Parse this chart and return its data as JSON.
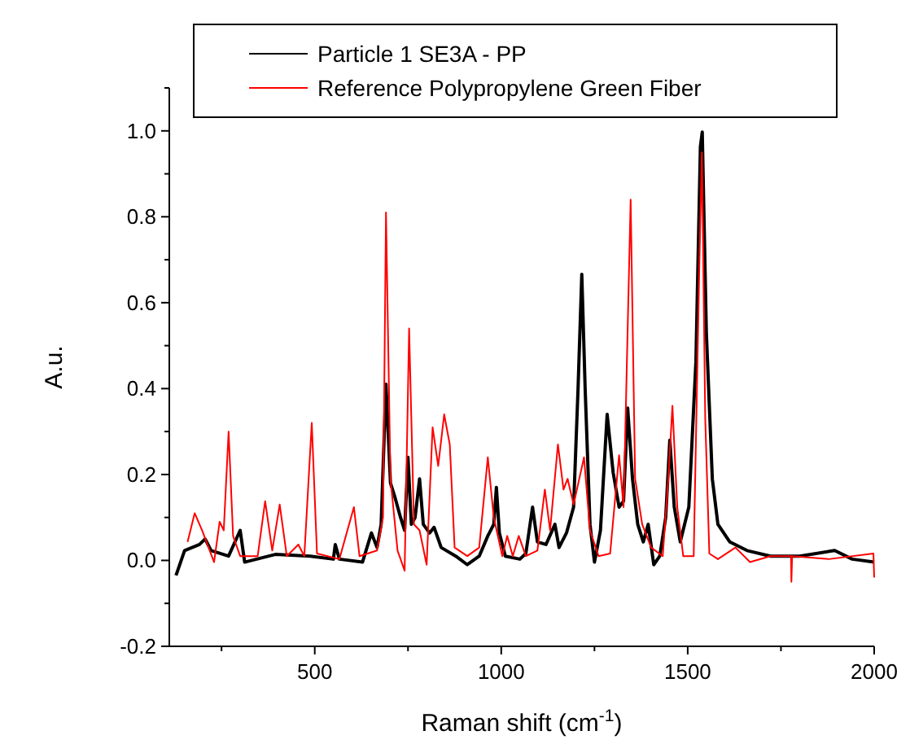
{
  "chart_data": {
    "type": "line",
    "xlabel": "Raman shift (cm$^{-1}$)",
    "ylabel": "A.u.",
    "xlim": [
      110,
      2000
    ],
    "ylim": [
      -0.2,
      1.1
    ],
    "xticks": [
      {
        "value": 250,
        "label": null
      },
      500,
      {
        "value": 750,
        "label": null
      },
      1000,
      {
        "value": 1250,
        "label": null
      },
      1500,
      {
        "value": 1750,
        "label": null
      },
      2000
    ],
    "yticks": [
      -0.2,
      {
        "value": -0.1,
        "label": null
      },
      "0.0",
      {
        "value": 0.1,
        "label": null
      },
      0.2,
      {
        "value": 0.3,
        "label": null
      },
      0.4,
      {
        "value": 0.5,
        "label": null
      },
      0.6,
      {
        "value": 0.7,
        "label": null
      },
      0.8,
      {
        "value": 0.9,
        "label": null
      },
      "1.0",
      {
        "value": 1.1,
        "label": null
      }
    ],
    "grid": false,
    "legend": "top",
    "marker": "none",
    "line_style": "solid",
    "series": [
      {
        "name": "Particle 1 SE3A - PP",
        "color": "#000000",
        "x": [
          128,
          151,
          191,
          206,
          222,
          269,
          300,
          312,
          394,
          488,
          550,
          555,
          566,
          628,
          652,
          667,
          678,
          691,
          703,
          714,
          730,
          741,
          750,
          759,
          769,
          781,
          791,
          808,
          820,
          839,
          878,
          909,
          941,
          964,
          980,
          987,
          995,
          1011,
          1050,
          1066,
          1084,
          1097,
          1120,
          1144,
          1155,
          1175,
          1194,
          1206,
          1216,
          1225,
          1238,
          1250,
          1266,
          1284,
          1300,
          1316,
          1328,
          1339,
          1352,
          1366,
          1381,
          1394,
          1409,
          1425,
          1441,
          1452,
          1464,
          1480,
          1503,
          1522,
          1534,
          1539,
          1550,
          1566,
          1581,
          1613,
          1659,
          1722,
          1800,
          1894,
          1941,
          2000
        ],
        "values": [
          -0.035,
          0.023,
          0.037,
          0.05,
          0.023,
          0.01,
          0.07,
          -0.004,
          0.014,
          0.01,
          0.003,
          0.037,
          0.003,
          -0.004,
          0.064,
          0.03,
          0.084,
          0.41,
          0.18,
          0.15,
          0.1,
          0.07,
          0.24,
          0.084,
          0.1,
          0.19,
          0.084,
          0.064,
          0.077,
          0.03,
          0.01,
          -0.01,
          0.01,
          0.057,
          0.084,
          0.17,
          0.064,
          0.01,
          0.003,
          0.016,
          0.124,
          0.043,
          0.037,
          0.084,
          0.03,
          0.064,
          0.124,
          0.4,
          0.666,
          0.4,
          0.084,
          -0.004,
          0.07,
          0.34,
          0.205,
          0.124,
          0.138,
          0.355,
          0.19,
          0.084,
          0.043,
          0.084,
          -0.01,
          0.01,
          0.1,
          0.28,
          0.124,
          0.043,
          0.124,
          0.463,
          0.963,
          0.997,
          0.53,
          0.19,
          0.084,
          0.043,
          0.023,
          0.01,
          0.01,
          0.023,
          0.003,
          -0.004
        ]
      },
      {
        "name": "Reference Polypropylene Green Fiber",
        "color": "#ff0000",
        "x": [
          159,
          178,
          198,
          230,
          245,
          256,
          269,
          281,
          300,
          347,
          367,
          386,
          406,
          425,
          456,
          472,
          492,
          506,
          566,
          605,
          620,
          667,
          683,
          691,
          703,
          722,
          741,
          753,
          766,
          781,
          800,
          816,
          831,
          847,
          862,
          875,
          909,
          941,
          964,
          980,
          1003,
          1016,
          1031,
          1047,
          1066,
          1097,
          1117,
          1131,
          1152,
          1167,
          1178,
          1194,
          1222,
          1238,
          1261,
          1292,
          1316,
          1328,
          1347,
          1359,
          1378,
          1402,
          1433,
          1448,
          1459,
          1472,
          1488,
          1516,
          1531,
          1538,
          1547,
          1558,
          1581,
          1628,
          1667,
          1722,
          1777,
          1778,
          1780,
          1878,
          1998,
          2000
        ],
        "values": [
          0.043,
          0.11,
          0.07,
          -0.004,
          0.09,
          0.07,
          0.3,
          0.057,
          0.01,
          0.01,
          0.138,
          0.023,
          0.13,
          0.01,
          0.037,
          0.01,
          0.32,
          0.016,
          0.003,
          0.124,
          0.01,
          0.023,
          0.1,
          0.81,
          0.19,
          0.023,
          -0.024,
          0.54,
          0.084,
          0.07,
          -0.01,
          0.31,
          0.22,
          0.34,
          0.27,
          0.03,
          0.01,
          0.03,
          0.24,
          0.1,
          0.01,
          0.057,
          0.01,
          0.057,
          0.01,
          0.023,
          0.165,
          0.07,
          0.27,
          0.165,
          0.19,
          0.13,
          0.24,
          0.07,
          0.01,
          0.016,
          0.245,
          0.124,
          0.84,
          0.19,
          0.084,
          0.03,
          0.01,
          0.19,
          0.36,
          0.124,
          0.01,
          0.01,
          0.68,
          0.95,
          0.33,
          0.016,
          0.003,
          0.03,
          -0.004,
          0.01,
          0.01,
          -0.05,
          0.01,
          0.003,
          0.016,
          -0.04
        ]
      }
    ]
  }
}
